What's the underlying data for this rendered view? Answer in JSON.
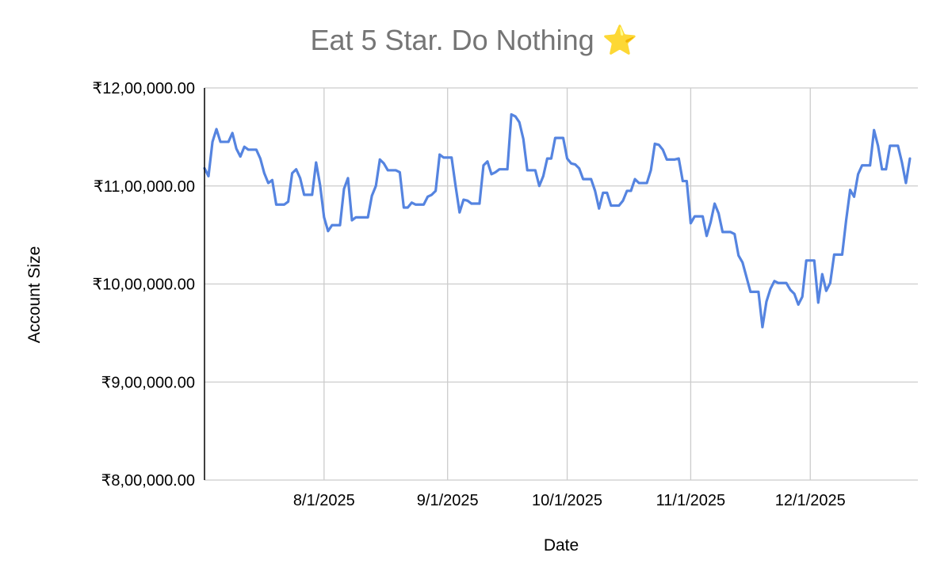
{
  "chart_data": {
    "type": "line",
    "title": "Eat 5 Star. Do Nothing ⭐️",
    "xlabel": "Date",
    "ylabel": "Account Size",
    "x_start": "2025-07-02",
    "x_end": "2025-12-28",
    "xticks": [
      "8/1/2025",
      "9/1/2025",
      "10/1/2025",
      "11/1/2025",
      "12/1/2025"
    ],
    "yticks": [
      "₹8,00,000.00",
      "₹9,00,000.00",
      "₹10,00,000.00",
      "₹11,00,000.00",
      "₹12,00,000.00"
    ],
    "ylim": [
      800000,
      1200000
    ],
    "grid": true,
    "series": [
      {
        "color": "#5584e0",
        "points": [
          [
            "2025-07-02",
            1118000
          ],
          [
            "2025-07-03",
            1110000
          ],
          [
            "2025-07-04",
            1145000
          ],
          [
            "2025-07-05",
            1158000
          ],
          [
            "2025-07-06",
            1145000
          ],
          [
            "2025-07-08",
            1145000
          ],
          [
            "2025-07-09",
            1154000
          ],
          [
            "2025-07-10",
            1138000
          ],
          [
            "2025-07-11",
            1130000
          ],
          [
            "2025-07-12",
            1140000
          ],
          [
            "2025-07-13",
            1137000
          ],
          [
            "2025-07-15",
            1137000
          ],
          [
            "2025-07-16",
            1128000
          ],
          [
            "2025-07-17",
            1113000
          ],
          [
            "2025-07-18",
            1103000
          ],
          [
            "2025-07-19",
            1106000
          ],
          [
            "2025-07-20",
            1081000
          ],
          [
            "2025-07-22",
            1081000
          ],
          [
            "2025-07-23",
            1084000
          ],
          [
            "2025-07-24",
            1113000
          ],
          [
            "2025-07-25",
            1117000
          ],
          [
            "2025-07-26",
            1108000
          ],
          [
            "2025-07-27",
            1091000
          ],
          [
            "2025-07-29",
            1091000
          ],
          [
            "2025-07-30",
            1124000
          ],
          [
            "2025-07-31",
            1101000
          ],
          [
            "2025-08-01",
            1068000
          ],
          [
            "2025-08-02",
            1054000
          ],
          [
            "2025-08-03",
            1060000
          ],
          [
            "2025-08-05",
            1060000
          ],
          [
            "2025-08-06",
            1097000
          ],
          [
            "2025-08-07",
            1108000
          ],
          [
            "2025-08-08",
            1065000
          ],
          [
            "2025-08-09",
            1068000
          ],
          [
            "2025-08-12",
            1068000
          ],
          [
            "2025-08-13",
            1090000
          ],
          [
            "2025-08-14",
            1100000
          ],
          [
            "2025-08-15",
            1127000
          ],
          [
            "2025-08-16",
            1123000
          ],
          [
            "2025-08-17",
            1116000
          ],
          [
            "2025-08-19",
            1116000
          ],
          [
            "2025-08-20",
            1114000
          ],
          [
            "2025-08-21",
            1078000
          ],
          [
            "2025-08-22",
            1078000
          ],
          [
            "2025-08-23",
            1083000
          ],
          [
            "2025-08-24",
            1081000
          ],
          [
            "2025-08-26",
            1081000
          ],
          [
            "2025-08-27",
            1089000
          ],
          [
            "2025-08-28",
            1091000
          ],
          [
            "2025-08-29",
            1095000
          ],
          [
            "2025-08-30",
            1132000
          ],
          [
            "2025-08-31",
            1129000
          ],
          [
            "2025-09-02",
            1129000
          ],
          [
            "2025-09-03",
            1100000
          ],
          [
            "2025-09-04",
            1073000
          ],
          [
            "2025-09-05",
            1086000
          ],
          [
            "2025-09-06",
            1085000
          ],
          [
            "2025-09-07",
            1082000
          ],
          [
            "2025-09-09",
            1082000
          ],
          [
            "2025-09-10",
            1121000
          ],
          [
            "2025-09-11",
            1125000
          ],
          [
            "2025-09-12",
            1112000
          ],
          [
            "2025-09-13",
            1114000
          ],
          [
            "2025-09-14",
            1117000
          ],
          [
            "2025-09-16",
            1117000
          ],
          [
            "2025-09-17",
            1173000
          ],
          [
            "2025-09-18",
            1171000
          ],
          [
            "2025-09-19",
            1165000
          ],
          [
            "2025-09-20",
            1148000
          ],
          [
            "2025-09-21",
            1116000
          ],
          [
            "2025-09-23",
            1116000
          ],
          [
            "2025-09-24",
            1100000
          ],
          [
            "2025-09-25",
            1110000
          ],
          [
            "2025-09-26",
            1128000
          ],
          [
            "2025-09-27",
            1128000
          ],
          [
            "2025-09-28",
            1149000
          ],
          [
            "2025-09-30",
            1149000
          ],
          [
            "2025-10-01",
            1128000
          ],
          [
            "2025-10-02",
            1123000
          ],
          [
            "2025-10-03",
            1122000
          ],
          [
            "2025-10-04",
            1118000
          ],
          [
            "2025-10-05",
            1107000
          ],
          [
            "2025-10-07",
            1107000
          ],
          [
            "2025-10-08",
            1095000
          ],
          [
            "2025-10-09",
            1077000
          ],
          [
            "2025-10-10",
            1093000
          ],
          [
            "2025-10-11",
            1093000
          ],
          [
            "2025-10-12",
            1080000
          ],
          [
            "2025-10-14",
            1080000
          ],
          [
            "2025-10-15",
            1085000
          ],
          [
            "2025-10-16",
            1095000
          ],
          [
            "2025-10-17",
            1095000
          ],
          [
            "2025-10-18",
            1107000
          ],
          [
            "2025-10-19",
            1103000
          ],
          [
            "2025-10-21",
            1103000
          ],
          [
            "2025-10-22",
            1116000
          ],
          [
            "2025-10-23",
            1143000
          ],
          [
            "2025-10-24",
            1142000
          ],
          [
            "2025-10-25",
            1137000
          ],
          [
            "2025-10-26",
            1127000
          ],
          [
            "2025-10-28",
            1127000
          ],
          [
            "2025-10-29",
            1128000
          ],
          [
            "2025-10-30",
            1105000
          ],
          [
            "2025-10-31",
            1105000
          ],
          [
            "2025-11-01",
            1062000
          ],
          [
            "2025-11-02",
            1069000
          ],
          [
            "2025-11-04",
            1069000
          ],
          [
            "2025-11-05",
            1049000
          ],
          [
            "2025-11-06",
            1063000
          ],
          [
            "2025-11-07",
            1082000
          ],
          [
            "2025-11-08",
            1072000
          ],
          [
            "2025-11-09",
            1053000
          ],
          [
            "2025-11-11",
            1053000
          ],
          [
            "2025-11-12",
            1051000
          ],
          [
            "2025-11-13",
            1029000
          ],
          [
            "2025-11-14",
            1022000
          ],
          [
            "2025-11-15",
            1007000
          ],
          [
            "2025-11-16",
            992000
          ],
          [
            "2025-11-18",
            992000
          ],
          [
            "2025-11-19",
            956000
          ],
          [
            "2025-11-20",
            982000
          ],
          [
            "2025-11-21",
            995000
          ],
          [
            "2025-11-22",
            1003000
          ],
          [
            "2025-11-23",
            1001000
          ],
          [
            "2025-11-25",
            1001000
          ],
          [
            "2025-11-26",
            994000
          ],
          [
            "2025-11-27",
            990000
          ],
          [
            "2025-11-28",
            979000
          ],
          [
            "2025-11-29",
            987000
          ],
          [
            "2025-11-30",
            1024000
          ],
          [
            "2025-12-02",
            1024000
          ],
          [
            "2025-12-03",
            981000
          ],
          [
            "2025-12-04",
            1010000
          ],
          [
            "2025-12-05",
            993000
          ],
          [
            "2025-12-06",
            1001000
          ],
          [
            "2025-12-07",
            1030000
          ],
          [
            "2025-12-09",
            1030000
          ],
          [
            "2025-12-10",
            1065000
          ],
          [
            "2025-12-11",
            1096000
          ],
          [
            "2025-12-12",
            1089000
          ],
          [
            "2025-12-13",
            1112000
          ],
          [
            "2025-12-14",
            1121000
          ],
          [
            "2025-12-16",
            1121000
          ],
          [
            "2025-12-17",
            1157000
          ],
          [
            "2025-12-18",
            1141000
          ],
          [
            "2025-12-19",
            1117000
          ],
          [
            "2025-12-20",
            1117000
          ],
          [
            "2025-12-21",
            1141000
          ],
          [
            "2025-12-23",
            1141000
          ],
          [
            "2025-12-24",
            1124000
          ],
          [
            "2025-12-25",
            1103000
          ],
          [
            "2025-12-26",
            1128000
          ]
        ]
      }
    ]
  }
}
